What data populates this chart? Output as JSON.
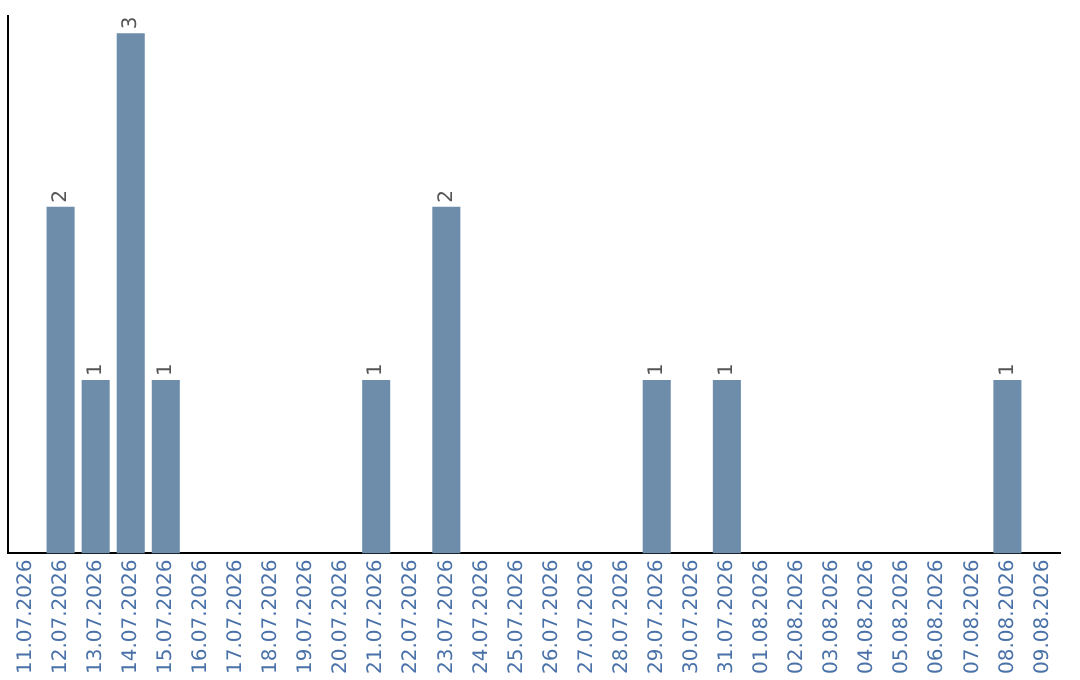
{
  "chart_data": {
    "type": "bar",
    "categories": [
      "11.07.2026",
      "12.07.2026",
      "13.07.2026",
      "14.07.2026",
      "15.07.2026",
      "16.07.2026",
      "17.07.2026",
      "18.07.2026",
      "19.07.2026",
      "20.07.2026",
      "21.07.2026",
      "22.07.2026",
      "23.07.2026",
      "24.07.2026",
      "25.07.2026",
      "26.07.2026",
      "27.07.2026",
      "28.07.2026",
      "29.07.2026",
      "30.07.2026",
      "31.07.2026",
      "01.08.2026",
      "02.08.2026",
      "03.08.2026",
      "04.08.2026",
      "05.08.2026",
      "06.08.2026",
      "07.08.2026",
      "08.08.2026",
      "09.08.2026"
    ],
    "values": [
      0,
      2,
      1,
      3,
      1,
      0,
      0,
      0,
      0,
      0,
      1,
      0,
      2,
      0,
      0,
      0,
      0,
      0,
      1,
      0,
      1,
      0,
      0,
      0,
      0,
      0,
      0,
      0,
      1,
      0
    ],
    "value_labels": [
      null,
      "2",
      "1",
      "3",
      "1",
      null,
      null,
      null,
      null,
      null,
      "1",
      null,
      "2",
      null,
      null,
      null,
      null,
      null,
      "1",
      null,
      "1",
      null,
      null,
      null,
      null,
      null,
      null,
      null,
      "1",
      null
    ],
    "color": "#6d8dab",
    "ylim": [
      0,
      3.1
    ],
    "tick_labels": "x",
    "grid": false,
    "legend": false
  }
}
